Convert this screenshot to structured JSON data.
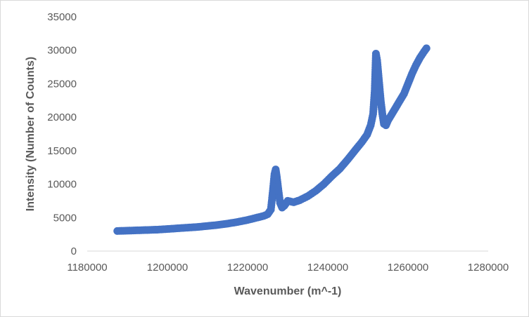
{
  "chart_data": {
    "type": "scatter",
    "title": "",
    "xlabel": "Wavenumber (m^-1)",
    "ylabel": "Intensity (Number of Counts)",
    "xlim": [
      1180000,
      1280000
    ],
    "ylim": [
      0,
      35000
    ],
    "x_ticks": [
      "1180000",
      "1200000",
      "1220000",
      "1240000",
      "1260000",
      "1280000"
    ],
    "y_ticks": [
      "0",
      "5000",
      "10000",
      "15000",
      "20000",
      "25000",
      "30000",
      "35000"
    ],
    "grid": false,
    "legend": "none",
    "marker_color": "#4472C4",
    "series": [
      {
        "x": [
          1187500,
          1190000,
          1192500,
          1195000,
          1197500,
          1200000,
          1202500,
          1205000,
          1207500,
          1210000,
          1212500,
          1215000,
          1217500,
          1220000,
          1222000,
          1224000,
          1225000,
          1225800,
          1226300,
          1226700,
          1227000,
          1227300,
          1227700,
          1228100,
          1228600,
          1229200,
          1230000,
          1231500,
          1233000,
          1235000,
          1237000,
          1239000,
          1241000,
          1243000,
          1245000,
          1247000,
          1248500,
          1249800,
          1250700,
          1251300,
          1251700,
          1252000,
          1252300,
          1252600,
          1252900,
          1253200,
          1253600,
          1254000,
          1254500,
          1255000,
          1256000,
          1257000,
          1258000,
          1259000,
          1260000,
          1261000,
          1262000,
          1263000,
          1264000,
          1264600
        ],
        "y": [
          3000,
          3050,
          3100,
          3150,
          3200,
          3300,
          3400,
          3500,
          3600,
          3750,
          3900,
          4100,
          4350,
          4650,
          4950,
          5250,
          5500,
          6200,
          9000,
          11500,
          12200,
          11000,
          9000,
          7200,
          6500,
          6800,
          7500,
          7300,
          7600,
          8200,
          9000,
          10000,
          11200,
          12300,
          13700,
          15200,
          16300,
          17400,
          18800,
          20500,
          24000,
          29500,
          28500,
          26500,
          24500,
          22500,
          20500,
          19000,
          18800,
          19500,
          20500,
          21500,
          22500,
          23500,
          25000,
          26500,
          27800,
          28900,
          29800,
          30300
        ]
      }
    ]
  }
}
